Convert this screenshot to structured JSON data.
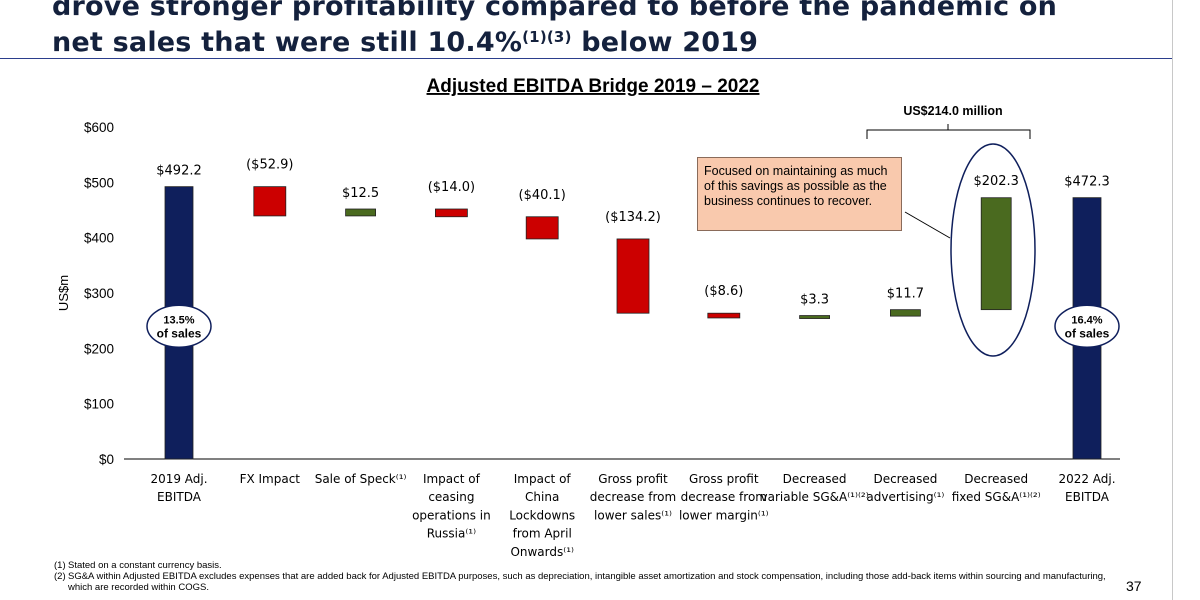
{
  "headline": {
    "line1": "drove stronger profitability compared to before the pandemic on",
    "line2_pre": "net sales that were still 10.4%",
    "line2_sup": "(1)(3)",
    "line2_post": " below 2019"
  },
  "page_number": "37",
  "callout_text": "Focused on maintaining as much of this savings as possible as the business continues to recover.",
  "bracket_label": "US$214.0 million",
  "footnotes": [
    {
      "num": "(1)",
      "text": "Stated on a constant currency basis."
    },
    {
      "num": "(2)",
      "text": "SG&A within Adjusted EBITDA excludes expenses that are added back for Adjusted EBITDA purposes, such as depreciation, intangible asset amortization and stock compensation, including those add-back items within sourcing and manufacturing, which are recorded within COGS."
    }
  ],
  "colors": {
    "total": "#0f1f5c",
    "decrease": "#cc0000",
    "increase": "#4a6a1f",
    "badge_border": "#0f1f5c",
    "callout_fill": "#f9c9ad"
  },
  "chart_data": {
    "type": "bar",
    "subtype": "waterfall",
    "title": "Adjusted EBITDA Bridge 2019 – 2022",
    "ylabel": "US$m",
    "ylim": [
      0,
      600
    ],
    "yticks": [
      0,
      100,
      200,
      300,
      400,
      500,
      600
    ],
    "ytick_labels": [
      "$0",
      "$100",
      "$200",
      "$300",
      "$400",
      "$500",
      "$600"
    ],
    "grid": false,
    "bars": [
      {
        "lines": [
          "2019 Adj.",
          "EBITDA"
        ],
        "kind": "total",
        "start": 0,
        "end": 492.2,
        "label": "$492.2"
      },
      {
        "lines": [
          "FX Impact"
        ],
        "kind": "decrease",
        "start": 492.2,
        "end": 439.3,
        "label": "($52.9)"
      },
      {
        "lines": [
          "Sale of Speck⁽¹⁾"
        ],
        "kind": "increase",
        "start": 439.3,
        "end": 451.8,
        "label": "$12.5"
      },
      {
        "lines": [
          "Impact of",
          "ceasing",
          "operations in",
          "Russia⁽¹⁾"
        ],
        "kind": "decrease",
        "start": 451.8,
        "end": 437.8,
        "label": "($14.0)"
      },
      {
        "lines": [
          "Impact of",
          "China",
          "Lockdowns",
          "from April",
          "Onwards⁽¹⁾"
        ],
        "kind": "decrease",
        "start": 437.8,
        "end": 397.7,
        "label": "($40.1)"
      },
      {
        "lines": [
          "Gross profit",
          "decrease from",
          "lower sales⁽¹⁾"
        ],
        "kind": "decrease",
        "start": 397.7,
        "end": 263.5,
        "label": "($134.2)"
      },
      {
        "lines": [
          "Gross profit",
          "decrease from",
          "lower margin⁽¹⁾"
        ],
        "kind": "decrease",
        "start": 263.5,
        "end": 254.9,
        "label": "($8.6)"
      },
      {
        "lines": [
          "Decreased",
          "variable SG&A⁽¹⁾⁽²⁾"
        ],
        "kind": "increase",
        "start": 254.9,
        "end": 258.2,
        "label": "$3.3"
      },
      {
        "lines": [
          "Decreased",
          "advertising⁽¹⁾"
        ],
        "kind": "increase",
        "start": 258.2,
        "end": 269.9,
        "label": "$11.7"
      },
      {
        "lines": [
          "Decreased",
          "fixed SG&A⁽¹⁾⁽²⁾"
        ],
        "kind": "increase",
        "start": 269.9,
        "end": 472.2,
        "label": "$202.3"
      },
      {
        "lines": [
          "2022 Adj.",
          "EBITDA"
        ],
        "kind": "total",
        "start": 0,
        "end": 472.3,
        "label": "$472.3"
      }
    ],
    "badges": [
      {
        "bar": 0,
        "lines": [
          "13.5%",
          "of sales"
        ],
        "y": 285
      },
      {
        "bar": 10,
        "lines": [
          "16.4%",
          "of sales"
        ],
        "y": 285
      }
    ]
  }
}
